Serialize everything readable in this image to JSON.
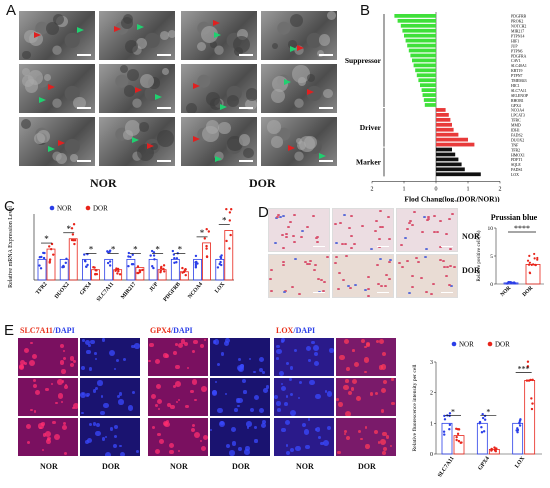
{
  "panels": {
    "A": {
      "letter": "A",
      "group_labels": [
        "NOR",
        "DOR"
      ]
    },
    "B": {
      "letter": "B"
    },
    "C": {
      "letter": "C"
    },
    "D": {
      "letter": "D",
      "row_labels": [
        "NOR",
        "DOR"
      ],
      "bar_title": "Prussian blue"
    },
    "E": {
      "letter": "E",
      "stains": [
        {
          "marker": "SLC7A11",
          "dapi": "/DAPI",
          "marker_color": "#e8301a"
        },
        {
          "marker": "GPX4",
          "dapi": "/DAPI",
          "marker_color": "#e8301a"
        },
        {
          "marker": "LOX",
          "dapi": "/DAPI",
          "marker_color": "#e8301a"
        }
      ],
      "col_labels": [
        "NOR",
        "DOR",
        "NOR",
        "DOR",
        "NOR",
        "DOR"
      ]
    }
  },
  "colors": {
    "nor": "#2a3ee8",
    "dor": "#e8241a",
    "suppressor": "#3fe03a",
    "driver": "#e83a3a",
    "marker": "#111111"
  },
  "chart_data": [
    {
      "id": "B",
      "type": "bar",
      "orientation": "horizontal",
      "xlabel_prefix": "Flod Chang(log",
      "xlabel_sub": "2",
      "xlabel_suffix": "(DOR/NOR))",
      "xlim": [
        -2,
        2
      ],
      "xticks": [
        "2",
        "1",
        "0",
        "1",
        "2"
      ],
      "groups": [
        {
          "name": "Suppressor",
          "color": "#3fe03a"
        },
        {
          "name": "Driver",
          "color": "#e83a3a"
        },
        {
          "name": "Marker",
          "color": "#111111"
        }
      ],
      "categories": [
        "PDGFRB",
        "PROK2",
        "NOTCH2",
        "MIR217",
        "PTPN14",
        "HIF1",
        "JUP",
        "PTPN6",
        "PDGFRA",
        "CAV1",
        "SLC40A1",
        "KRT19",
        "PTPN7",
        "TMEM43",
        "HIC1",
        "SLC7A11",
        "SELENOP",
        "RHOB1",
        "GPX4",
        "NCOA4",
        "LPCAT3",
        "TFRC",
        "MMD",
        "IDH1",
        "FADS2",
        "DUOX2",
        "TNF",
        "TFR2",
        "HMOX1",
        "FDFT1",
        "SQLE",
        "FADS1",
        "LOX"
      ],
      "group_of": [
        "Suppressor",
        "Suppressor",
        "Suppressor",
        "Suppressor",
        "Suppressor",
        "Suppressor",
        "Suppressor",
        "Suppressor",
        "Suppressor",
        "Suppressor",
        "Suppressor",
        "Suppressor",
        "Suppressor",
        "Suppressor",
        "Suppressor",
        "Suppressor",
        "Suppressor",
        "Suppressor",
        "Suppressor",
        "Driver",
        "Driver",
        "Driver",
        "Driver",
        "Driver",
        "Driver",
        "Driver",
        "Driver",
        "Marker",
        "Marker",
        "Marker",
        "Marker",
        "Marker",
        "Marker"
      ],
      "values": [
        -1.3,
        -1.2,
        -1.1,
        -1.05,
        -1.0,
        -0.95,
        -0.9,
        -0.85,
        -0.8,
        -0.75,
        -0.7,
        -0.65,
        -0.6,
        -0.55,
        -0.5,
        -0.45,
        -0.42,
        -0.38,
        -0.35,
        0.3,
        0.4,
        0.45,
        0.5,
        0.55,
        0.7,
        1.0,
        1.2,
        0.5,
        0.6,
        0.7,
        0.8,
        0.9,
        1.4
      ]
    },
    {
      "id": "C",
      "type": "bar",
      "ylabel": "Relative mRNA Expression Level",
      "legend": [
        "NOR",
        "DOR"
      ],
      "categories": [
        "TFR2",
        "DUOX2",
        "GPX4",
        "SLC7A11",
        "MIR217",
        "JUP",
        "PDGFRB",
        "NCOA4",
        "LOX"
      ],
      "series": [
        {
          "name": "NOR",
          "values": [
            1.0,
            1.0,
            1.0,
            1.0,
            1.0,
            1.0,
            1.0,
            1.0,
            1.0
          ]
        },
        {
          "name": "DOR",
          "values": [
            1.5,
            2.0,
            0.5,
            0.5,
            0.6,
            0.5,
            0.4,
            1.8,
            2.4
          ]
        }
      ],
      "significance": [
        "*",
        "*",
        "*",
        "*",
        "*",
        "*",
        "*",
        "*",
        "*"
      ]
    },
    {
      "id": "D",
      "type": "bar",
      "title": "Prussian blue",
      "ylabel": "Relative positive cell (%)",
      "categories": [
        "NOR",
        "DOR"
      ],
      "values": [
        0.2,
        3.5
      ],
      "ylim": [
        0,
        10
      ],
      "yticks": [
        "0",
        "5",
        "10"
      ],
      "significance": "****"
    },
    {
      "id": "E",
      "type": "bar",
      "ylabel": "Relative fluorescence intensity per cell",
      "legend": [
        "NOR",
        "DOR"
      ],
      "categories": [
        "SLC7A11",
        "GPX4",
        "LOX"
      ],
      "series": [
        {
          "name": "NOR",
          "values": [
            1.0,
            1.0,
            1.0
          ]
        },
        {
          "name": "DOR",
          "values": [
            0.6,
            0.15,
            2.4
          ]
        }
      ],
      "ylim": [
        0,
        3
      ],
      "yticks": [
        "0",
        "1",
        "2",
        "3"
      ],
      "significance": [
        "*",
        "*",
        "***"
      ]
    }
  ]
}
